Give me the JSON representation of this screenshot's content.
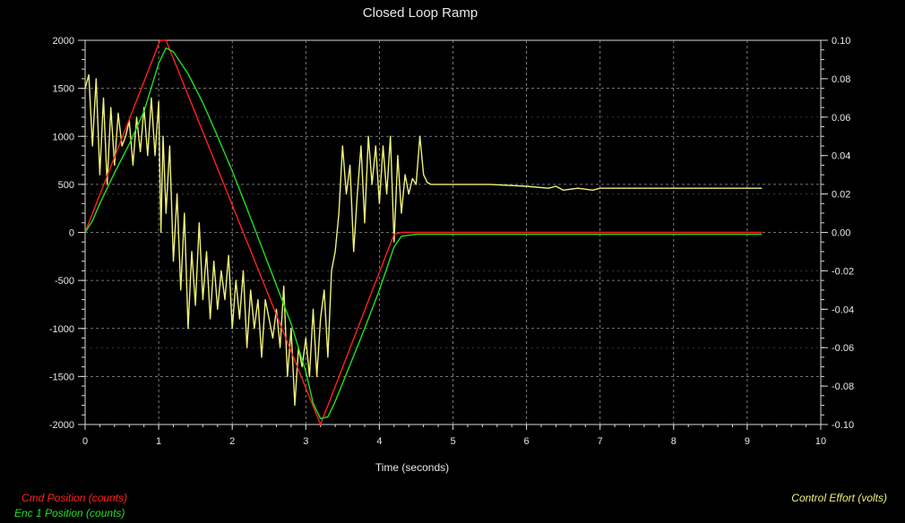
{
  "chart_data": {
    "type": "line",
    "title": "Closed Loop Ramp",
    "xlabel": "Time (seconds)",
    "xlim": [
      0,
      10
    ],
    "ylim_left": [
      -2000,
      2000
    ],
    "ylim_right": [
      -0.1,
      0.1
    ],
    "x_ticks": [
      "0",
      "1",
      "2",
      "3",
      "4",
      "5",
      "6",
      "7",
      "8",
      "9",
      "10"
    ],
    "y_left_ticks": [
      "2000",
      "1500",
      "1000",
      "500",
      "0",
      "-500",
      "-1000",
      "-1500",
      "-2000"
    ],
    "y_right_ticks": [
      "0.10",
      "0.08",
      "0.06",
      "0.04",
      "0.02",
      "0.00",
      "-0.02",
      "-0.04",
      "-0.06",
      "-0.08",
      "-0.10"
    ],
    "grid": true,
    "series": [
      {
        "name": "Cmd Position (counts)",
        "axis": "left",
        "color": "#ff2020",
        "x": [
          0,
          1.02,
          1.1,
          3.2,
          4.2,
          4.3,
          9.2
        ],
        "y": [
          0,
          2000,
          2000,
          -2000,
          -20,
          0,
          0
        ]
      },
      {
        "name": "Enc 1 Position (counts)",
        "axis": "left",
        "color": "#20e020",
        "x": [
          0,
          0.1,
          0.2,
          0.4,
          0.6,
          0.8,
          1.0,
          1.1,
          1.2,
          1.4,
          1.6,
          1.8,
          2.0,
          2.2,
          2.4,
          2.6,
          2.8,
          3.0,
          3.1,
          3.2,
          3.3,
          3.4,
          3.6,
          3.8,
          4.0,
          4.2,
          4.3,
          4.5,
          5.0,
          9.2
        ],
        "y": [
          0,
          120,
          300,
          620,
          920,
          1260,
          1760,
          1920,
          1880,
          1650,
          1350,
          1000,
          640,
          250,
          -150,
          -550,
          -950,
          -1450,
          -1780,
          -1940,
          -1920,
          -1760,
          -1380,
          -1000,
          -600,
          -150,
          -40,
          -20,
          -20,
          -20
        ]
      },
      {
        "name": "Control Effort (volts)",
        "axis": "right",
        "color": "#f0f07a",
        "x": [
          0,
          0.05,
          0.1,
          0.15,
          0.2,
          0.25,
          0.3,
          0.35,
          0.4,
          0.45,
          0.5,
          0.55,
          0.6,
          0.65,
          0.7,
          0.75,
          0.8,
          0.85,
          0.9,
          0.95,
          1.0,
          1.03,
          1.06,
          1.1,
          1.15,
          1.2,
          1.25,
          1.3,
          1.35,
          1.4,
          1.45,
          1.5,
          1.55,
          1.6,
          1.65,
          1.7,
          1.75,
          1.8,
          1.85,
          1.9,
          1.95,
          2.0,
          2.05,
          2.1,
          2.15,
          2.2,
          2.25,
          2.3,
          2.35,
          2.4,
          2.45,
          2.5,
          2.55,
          2.6,
          2.65,
          2.7,
          2.75,
          2.8,
          2.85,
          2.9,
          2.95,
          3.0,
          3.05,
          3.1,
          3.15,
          3.2,
          3.25,
          3.3,
          3.35,
          3.4,
          3.45,
          3.5,
          3.55,
          3.6,
          3.65,
          3.7,
          3.75,
          3.8,
          3.85,
          3.9,
          3.95,
          4.0,
          4.05,
          4.1,
          4.15,
          4.2,
          4.25,
          4.3,
          4.35,
          4.4,
          4.45,
          4.5,
          4.55,
          4.6,
          4.65,
          4.7,
          4.8,
          5.0,
          5.5,
          6.0,
          6.3,
          6.4,
          6.5,
          6.7,
          6.9,
          7.0,
          8.0,
          9.2
        ],
        "y": [
          0.075,
          0.082,
          0.045,
          0.08,
          0.03,
          0.07,
          0.025,
          0.065,
          0.035,
          0.062,
          0.045,
          0.05,
          0.058,
          0.035,
          0.06,
          0.042,
          0.065,
          0.04,
          0.07,
          0.04,
          0.068,
          0.0,
          0.05,
          0.01,
          0.045,
          -0.015,
          0.02,
          -0.03,
          0.01,
          -0.05,
          -0.01,
          -0.038,
          0.005,
          -0.035,
          -0.01,
          -0.045,
          -0.015,
          -0.04,
          -0.02,
          -0.035,
          -0.012,
          -0.05,
          -0.025,
          -0.045,
          -0.02,
          -0.06,
          -0.03,
          -0.05,
          -0.035,
          -0.065,
          -0.035,
          -0.045,
          -0.055,
          -0.04,
          -0.06,
          -0.028,
          -0.075,
          -0.05,
          -0.09,
          -0.06,
          -0.07,
          -0.055,
          -0.075,
          -0.04,
          -0.075,
          -0.045,
          -0.03,
          -0.065,
          -0.02,
          -0.01,
          0.01,
          0.045,
          0.02,
          0.035,
          -0.01,
          0.02,
          0.045,
          0.005,
          0.05,
          0.025,
          0.045,
          0.015,
          0.045,
          0.02,
          0.05,
          -0.005,
          0.04,
          0.01,
          0.03,
          0.02,
          0.028,
          0.025,
          0.05,
          0.03,
          0.026,
          0.025,
          0.025,
          0.025,
          0.025,
          0.024,
          0.023,
          0.024,
          0.022,
          0.023,
          0.022,
          0.023,
          0.023,
          0.023
        ]
      }
    ]
  }
}
